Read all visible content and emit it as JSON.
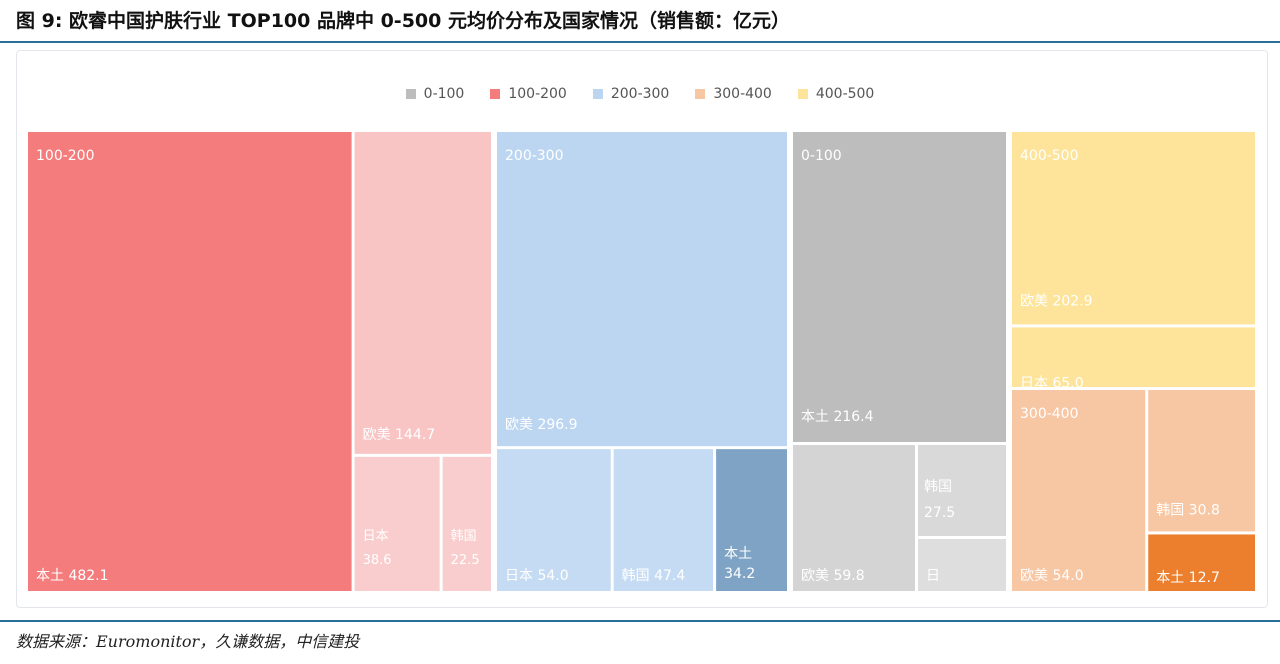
{
  "title": "图 9: 欧睿中国护肤行业 TOP100 品牌中 0-500 元均价分布及国家情况（销售额：亿元）",
  "source": "数据来源：Euromonitor，久谦数据，中信建投",
  "colors": {
    "0-100": "#bdbdbd",
    "100-200": "#f47c7c",
    "200-300": "#bcd6f1",
    "300-400": "#f7c6a3",
    "400-500": "#fde49a"
  },
  "chart_data": {
    "type": "treemap",
    "title": "",
    "legend": {
      "position": "top",
      "entries": [
        "0-100",
        "100-200",
        "200-300",
        "300-400",
        "400-500"
      ]
    },
    "groups": [
      {
        "name": "100-200",
        "items": [
          {
            "label": "本土",
            "value": 482.1
          },
          {
            "label": "欧美",
            "value": 144.7
          },
          {
            "label": "日本",
            "value": 38.6
          },
          {
            "label": "韩国",
            "value": 22.5
          }
        ]
      },
      {
        "name": "200-300",
        "items": [
          {
            "label": "欧美",
            "value": 296.9
          },
          {
            "label": "日本",
            "value": 54.0
          },
          {
            "label": "韩国",
            "value": 47.4
          },
          {
            "label": "本土",
            "value": 34.2
          }
        ]
      },
      {
        "name": "0-100",
        "items": [
          {
            "label": "本土",
            "value": 216.4
          },
          {
            "label": "欧美",
            "value": 59.8
          },
          {
            "label": "韩国",
            "value": 27.5
          },
          {
            "label": "日",
            "value": null
          }
        ]
      },
      {
        "name": "400-500",
        "items": [
          {
            "label": "欧美",
            "value": 202.9
          },
          {
            "label": "日本",
            "value": 65.0
          }
        ]
      },
      {
        "name": "300-400",
        "items": [
          {
            "label": "欧美",
            "value": 54.0
          },
          {
            "label": "韩国",
            "value": 30.8
          },
          {
            "label": "本土",
            "value": 12.7
          }
        ]
      }
    ]
  }
}
